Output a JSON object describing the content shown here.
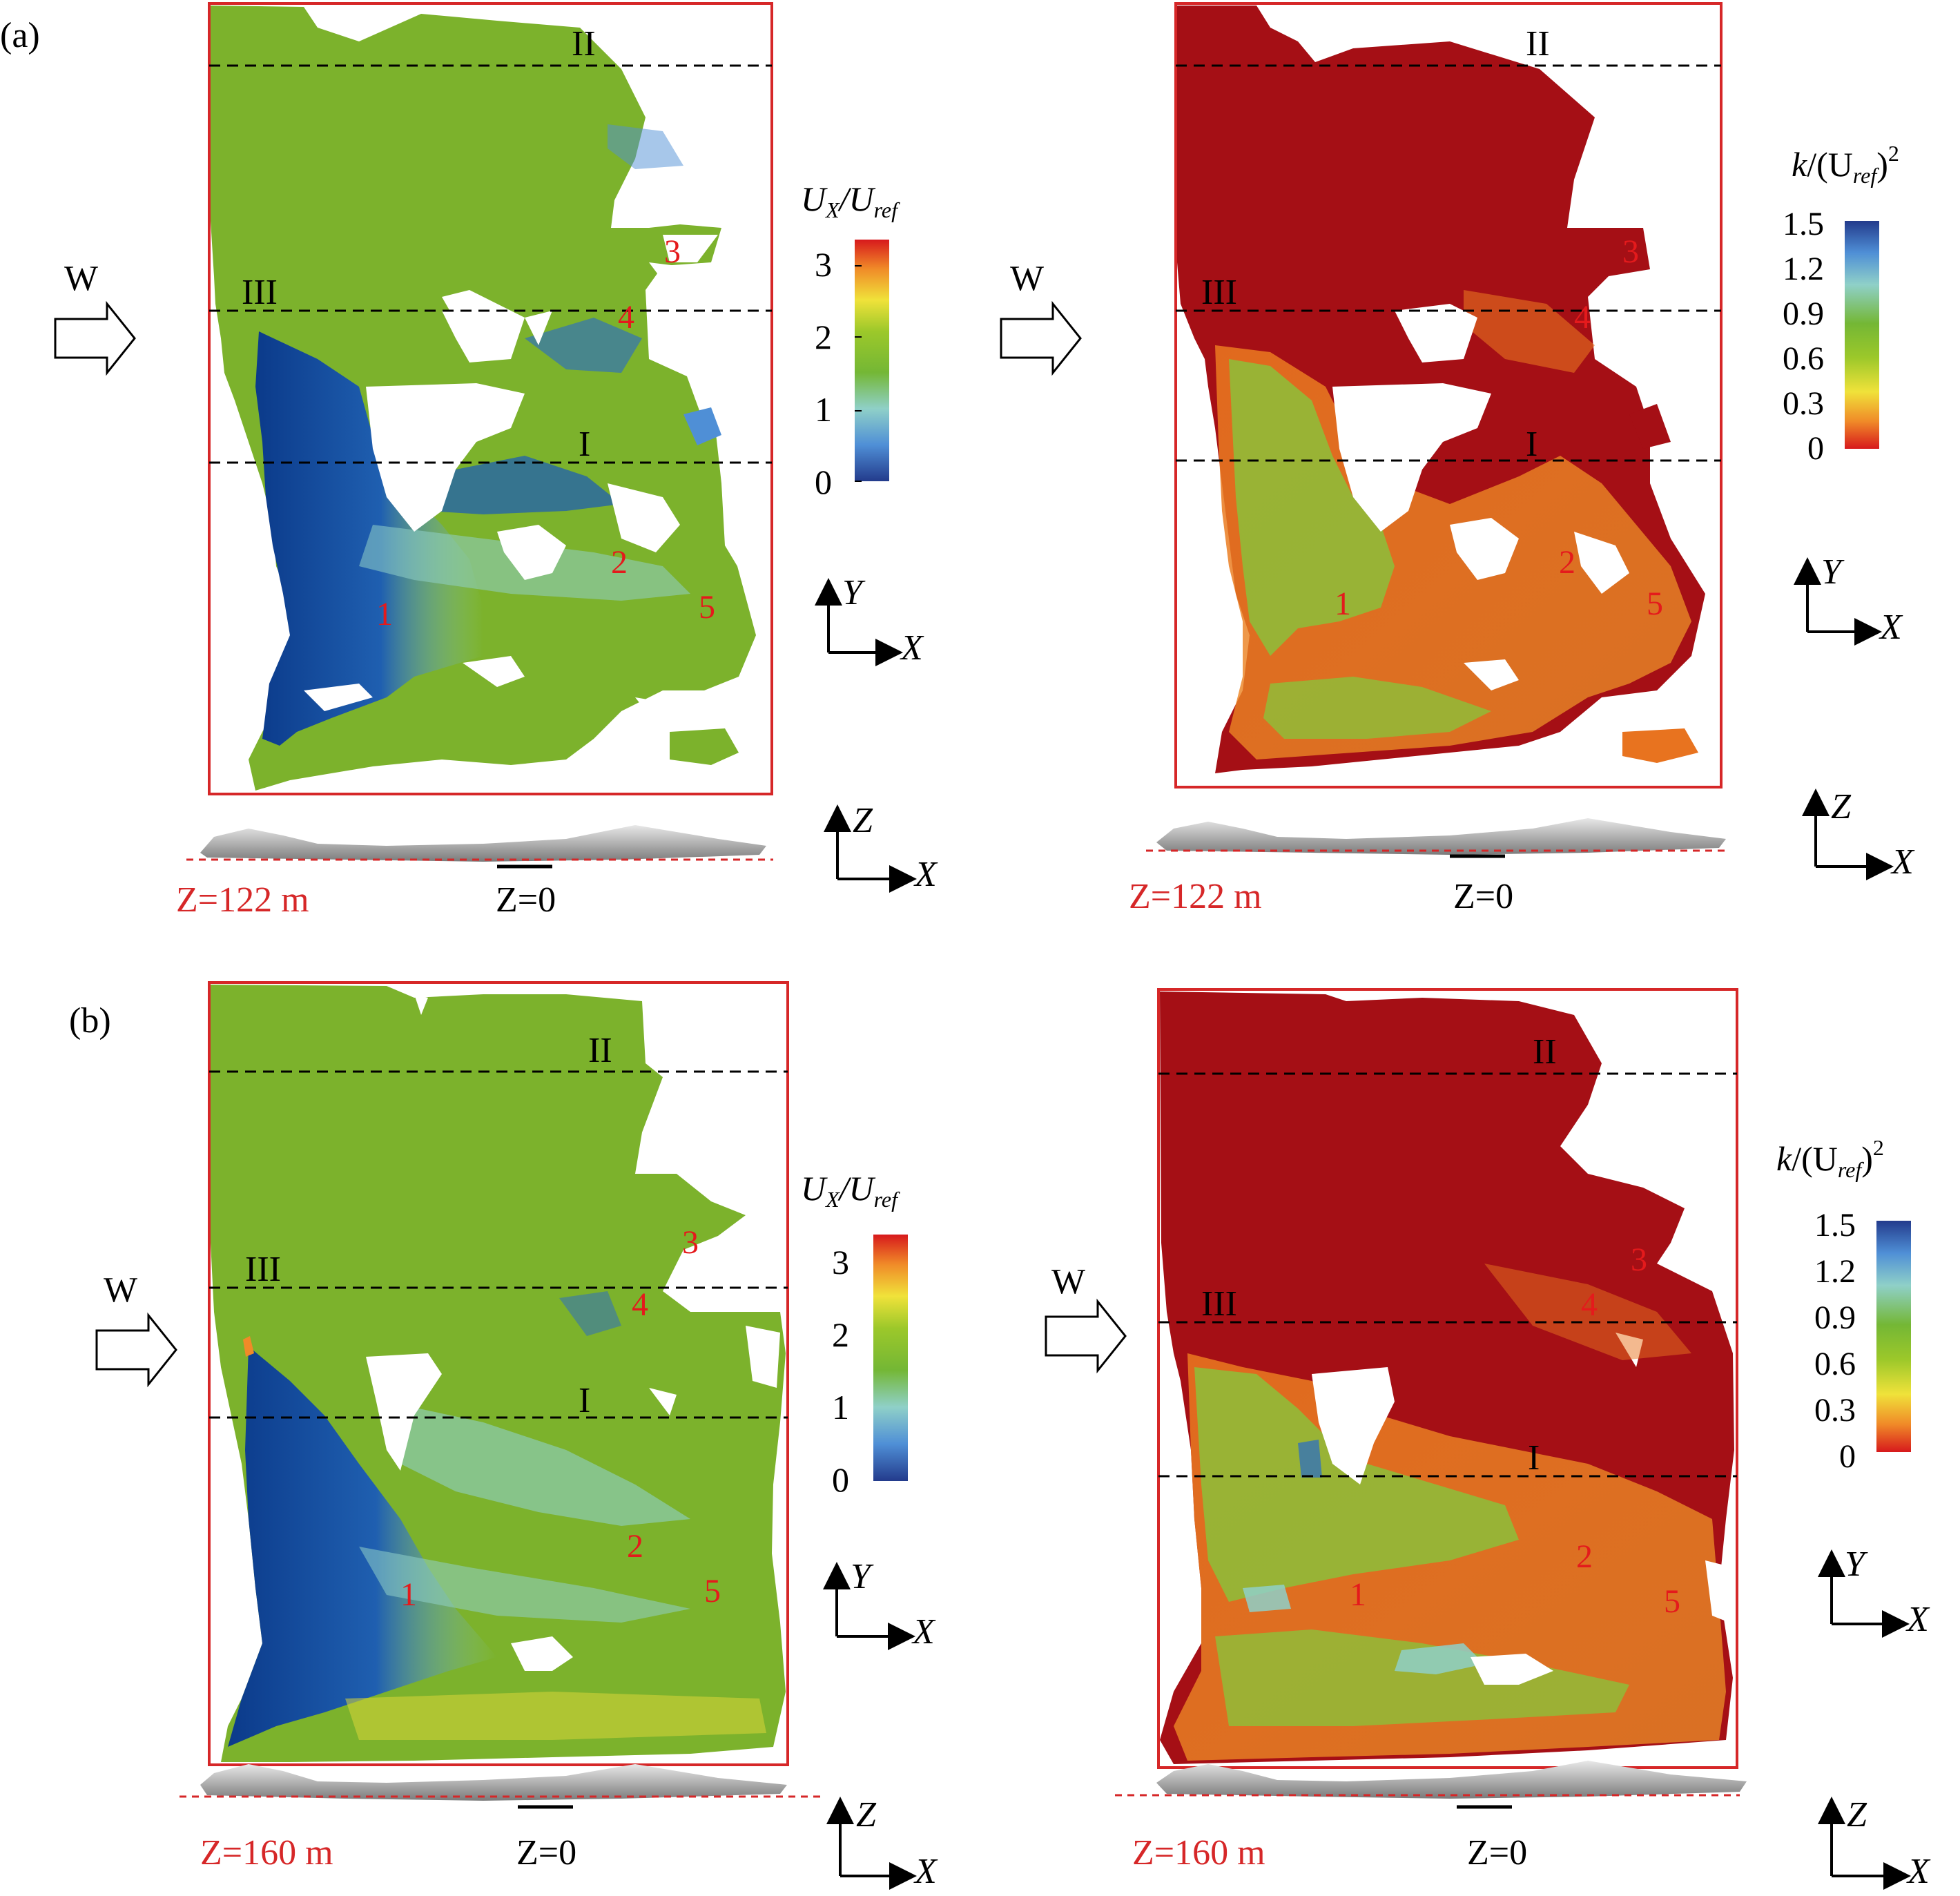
{
  "panels": {
    "a": {
      "label": "(a)",
      "z_label": "Z=122 m",
      "z0_label": "Z=0"
    },
    "b": {
      "label": "(b)",
      "z_label": "Z=160 m",
      "z0_label": "Z=0"
    }
  },
  "wind_label": "W",
  "section_lines": [
    "I",
    "II",
    "III"
  ],
  "building_labels": [
    "1",
    "2",
    "3",
    "4",
    "5"
  ],
  "axes": {
    "x": "X",
    "y": "Y",
    "z": "Z"
  },
  "colorbars": {
    "velocity": {
      "title_main": "U",
      "title_sub1": "X",
      "title_slash": "/U",
      "title_sub2": "ref",
      "ticks": [
        "0",
        "1",
        "2",
        "3"
      ]
    },
    "tke": {
      "title_k": "k",
      "title_open": "/(U",
      "title_sub": "ref",
      "title_close": ")",
      "title_sup": "2",
      "ticks": [
        "0",
        "0.3",
        "0.6",
        "0.9",
        "1.2",
        "1.5"
      ]
    }
  },
  "colors": {
    "frame": "#d62728",
    "green": "#7cb22c",
    "dark_blue": "#0b3a8a",
    "red": "#a50f15",
    "orange": "#e8731f",
    "label_red": "#e41a1c",
    "dash": "#000000"
  }
}
